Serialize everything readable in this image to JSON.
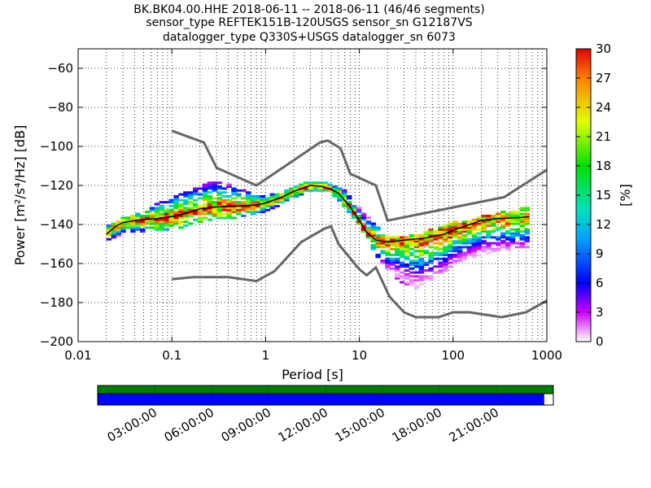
{
  "title_lines": [
    "BK.BK04.00.HHE   2018-06-11 -- 2018-06-11  (46/46 segments)",
    "sensor_type REFTEK151B-120USGS sensor_sn G12187VS",
    "datalogger_type Q330S+USGS datalogger_sn 6073"
  ],
  "chart_data": {
    "type": "heatmap",
    "x_scale": "log",
    "xlim": [
      0.01,
      1000
    ],
    "ylim": [
      -200,
      -50
    ],
    "xlabel": "Period [s]",
    "ylabel": "Power [m²/s⁴/Hz] [dB]",
    "x_ticks": [
      0.01,
      0.1,
      1,
      10,
      100,
      1000
    ],
    "x_tick_labels": [
      "0.01",
      "0.1",
      "1",
      "10",
      "100",
      "1000"
    ],
    "y_ticks": [
      -200,
      -180,
      -160,
      -140,
      -120,
      -100,
      -80,
      -60
    ],
    "y_tick_labels": [
      "−200",
      "−180",
      "−160",
      "−140",
      "−120",
      "−100",
      "−80",
      "−60"
    ],
    "grid": true,
    "colorbar": {
      "label": "[%]",
      "range": [
        0,
        30
      ],
      "ticks": [
        0,
        3,
        6,
        9,
        12,
        15,
        18,
        21,
        24,
        27,
        30
      ]
    },
    "noise_model_high": [
      [
        0.1,
        -92
      ],
      [
        0.22,
        -98
      ],
      [
        0.3,
        -111
      ],
      [
        0.8,
        -120
      ],
      [
        3.8,
        -98
      ],
      [
        4.6,
        -97
      ],
      [
        6.3,
        -101
      ],
      [
        8,
        -114
      ],
      [
        15,
        -120
      ],
      [
        20,
        -138
      ],
      [
        350,
        -126
      ],
      [
        1000,
        -112
      ]
    ],
    "noise_model_low": [
      [
        0.1,
        -168
      ],
      [
        0.17,
        -167
      ],
      [
        0.4,
        -167
      ],
      [
        0.8,
        -169
      ],
      [
        1.24,
        -164
      ],
      [
        2.4,
        -149
      ],
      [
        4.3,
        -142
      ],
      [
        5,
        -141
      ],
      [
        6,
        -150
      ],
      [
        10,
        -163
      ],
      [
        12,
        -166
      ],
      [
        15,
        -162
      ],
      [
        21,
        -177
      ],
      [
        30,
        -185
      ],
      [
        40,
        -187.5
      ],
      [
        70,
        -187.5
      ],
      [
        100,
        -185
      ],
      [
        150,
        -185
      ],
      [
        330,
        -187.5
      ],
      [
        600,
        -185
      ],
      [
        1000,
        -179
      ]
    ],
    "mean_psd": [
      [
        0.02,
        -145
      ],
      [
        0.025,
        -141
      ],
      [
        0.03,
        -139
      ],
      [
        0.04,
        -138
      ],
      [
        0.05,
        -137.5
      ],
      [
        0.07,
        -137
      ],
      [
        0.1,
        -136
      ],
      [
        0.15,
        -134
      ],
      [
        0.2,
        -132
      ],
      [
        0.3,
        -131
      ],
      [
        0.5,
        -130.5
      ],
      [
        0.8,
        -130
      ],
      [
        1,
        -129
      ],
      [
        1.5,
        -126
      ],
      [
        2,
        -123
      ],
      [
        3,
        -120
      ],
      [
        4,
        -120.5
      ],
      [
        5,
        -122
      ],
      [
        6,
        -124
      ],
      [
        8,
        -131
      ],
      [
        10,
        -138
      ],
      [
        12,
        -144
      ],
      [
        15,
        -148
      ],
      [
        20,
        -149
      ],
      [
        30,
        -148
      ],
      [
        50,
        -147
      ],
      [
        80,
        -145
      ],
      [
        100,
        -143
      ],
      [
        150,
        -140
      ],
      [
        200,
        -138
      ],
      [
        300,
        -137
      ],
      [
        500,
        -136.5
      ],
      [
        650,
        -136
      ]
    ],
    "psd_extent_upper": [
      [
        0.02,
        -141
      ],
      [
        0.03,
        -137
      ],
      [
        0.05,
        -133
      ],
      [
        0.1,
        -126
      ],
      [
        0.2,
        -120
      ],
      [
        0.3,
        -118
      ],
      [
        0.5,
        -121
      ],
      [
        0.8,
        -125
      ],
      [
        1,
        -126
      ],
      [
        2,
        -121
      ],
      [
        3,
        -118
      ],
      [
        4,
        -118
      ],
      [
        5,
        -120
      ],
      [
        7,
        -123
      ],
      [
        10,
        -132
      ],
      [
        15,
        -141
      ],
      [
        20,
        -146
      ],
      [
        30,
        -147
      ],
      [
        50,
        -144
      ],
      [
        100,
        -139
      ],
      [
        200,
        -136
      ],
      [
        400,
        -133
      ],
      [
        650,
        -131
      ]
    ],
    "psd_extent_lower": [
      [
        0.02,
        -148
      ],
      [
        0.03,
        -145
      ],
      [
        0.05,
        -143
      ],
      [
        0.1,
        -143
      ],
      [
        0.2,
        -138
      ],
      [
        0.5,
        -136
      ],
      [
        1,
        -133
      ],
      [
        2,
        -126
      ],
      [
        3,
        -122
      ],
      [
        5,
        -123
      ],
      [
        7,
        -131
      ],
      [
        10,
        -140
      ],
      [
        15,
        -155
      ],
      [
        20,
        -163
      ],
      [
        30,
        -170
      ],
      [
        40,
        -173
      ],
      [
        60,
        -168
      ],
      [
        100,
        -160
      ],
      [
        200,
        -155
      ],
      [
        400,
        -152
      ],
      [
        650,
        -151
      ]
    ],
    "availability_bar": {
      "data_coverage_percent": 100,
      "gapless_coverage_percent": 98,
      "data_color": "#008000",
      "coverage_color": "#0000ff",
      "time_ticks": [
        "03:00:00",
        "06:00:00",
        "09:00:00",
        "12:00:00",
        "15:00:00",
        "18:00:00",
        "21:00:00"
      ]
    }
  }
}
